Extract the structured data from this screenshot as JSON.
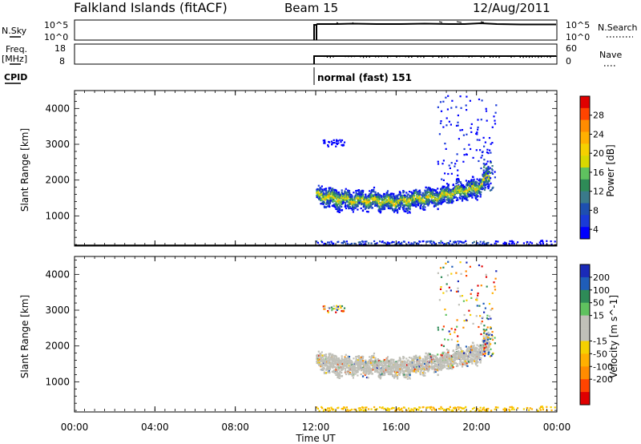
{
  "header": {
    "station": "Falkland Islands (fitACF)",
    "beam": "Beam 15",
    "date": "12/Aug/2011"
  },
  "nsky": {
    "label": "N.Sky",
    "ticks_left": [
      "10^5",
      "10^0"
    ],
    "ticks_right": [
      "10^5",
      "10^0"
    ],
    "right_label": "N.Search"
  },
  "freq": {
    "label_line1": "Freq.",
    "label_line2": "[MHz]",
    "ticks_left": [
      "18",
      "8"
    ],
    "ticks_right": [
      "60",
      "0"
    ],
    "right_label": "Nave"
  },
  "cpid": {
    "label": "CPID",
    "mode_label": "normal (fast) 151"
  },
  "time_axis": {
    "label": "Time UT",
    "ticks": [
      "00:00",
      "04:00",
      "08:00",
      "12:00",
      "16:00",
      "20:00",
      "00:00"
    ]
  },
  "power_colorbar": {
    "label": "Power [dB]",
    "ticks": [
      "28",
      "24",
      "20",
      "16",
      "12",
      "8",
      "4"
    ],
    "colors": [
      "#e00000",
      "#ff4400",
      "#ff8c00",
      "#ffb000",
      "#f5d000",
      "#d8d800",
      "#5fc25f",
      "#2e8b57",
      "#3a7a8a",
      "#1e4fb0",
      "#1a3ad8",
      "#0000ff"
    ]
  },
  "velocity_colorbar": {
    "label": "Velocity [m s^-1]",
    "ticks": [
      "200",
      "100",
      "50",
      "15",
      "-15",
      "-50",
      "-100",
      "-200"
    ],
    "colors": [
      "#1a2ab8",
      "#1f5db8",
      "#2e8b57",
      "#5fc25f",
      "#c0c0b8",
      "#c0c0b8",
      "#f5d000",
      "#ffb000",
      "#ff8c00",
      "#ff4400",
      "#e00000"
    ]
  },
  "chart_data": [
    {
      "type": "line",
      "panel": "N.Sky / N.Search",
      "xlabel": "",
      "ylabel": "N.Sky",
      "x": [
        12.0,
        12.2,
        14,
        16,
        18,
        19,
        20,
        21,
        24
      ],
      "values": [
        5,
        4.8,
        4.9,
        4.8,
        4.9,
        5.0,
        4.8,
        4.8,
        4.8
      ],
      "xlim": [
        0,
        24
      ]
    },
    {
      "type": "line",
      "panel": "Freq / Nave",
      "xlabel": "",
      "ylabel": "Freq. [MHz]",
      "x": [
        12.0,
        14,
        16,
        18,
        20,
        22,
        24
      ],
      "values": [
        12,
        12,
        12,
        12,
        12,
        12,
        12
      ],
      "xlim": [
        0,
        24
      ],
      "ylim": [
        8,
        18
      ]
    },
    {
      "type": "heatmap",
      "panel": "Power",
      "xlabel": "Time UT",
      "ylabel": "Slant Range [km]",
      "xlim": [
        0,
        24
      ],
      "ylim": [
        180,
        4500
      ],
      "band_center_km": [
        1600,
        1500,
        1450,
        1450,
        1400,
        1500,
        1550,
        1700,
        1800,
        2100
      ],
      "band_time_h": [
        12,
        13,
        14,
        15,
        16,
        17,
        18,
        19,
        20,
        20.5
      ],
      "colorbar_label": "Power [dB]"
    },
    {
      "type": "heatmap",
      "panel": "Velocity",
      "xlabel": "Time UT",
      "ylabel": "Slant Range [km]",
      "xlim": [
        0,
        24
      ],
      "ylim": [
        180,
        4500
      ],
      "band_center_km": [
        1600,
        1500,
        1450,
        1450,
        1400,
        1500,
        1550,
        1700,
        1800,
        2100
      ],
      "band_time_h": [
        12,
        13,
        14,
        15,
        16,
        17,
        18,
        19,
        20,
        20.5
      ],
      "colorbar_label": "Velocity [m s^-1]"
    }
  ]
}
